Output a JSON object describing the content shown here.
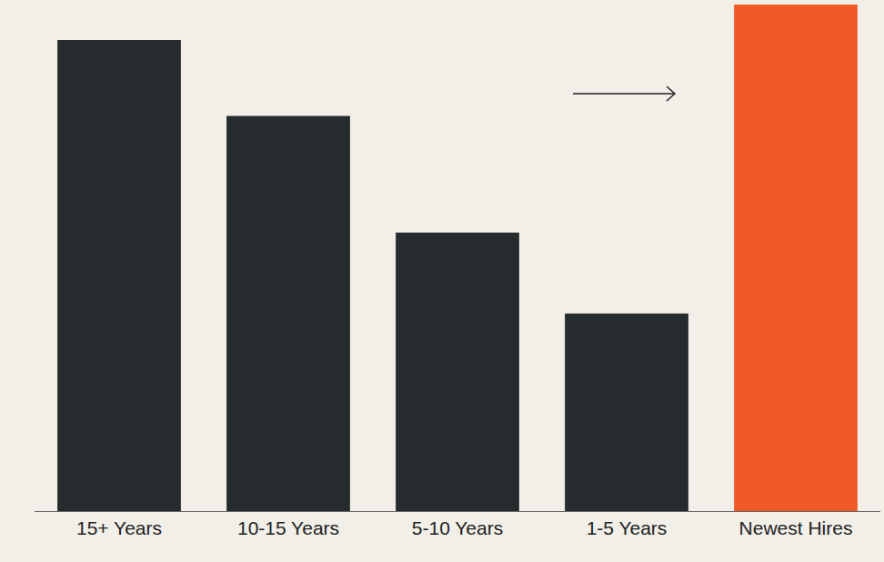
{
  "chart_data": {
    "type": "bar",
    "categories": [
      "15+ Years",
      "10-15 Years",
      "5-10 Years",
      "1-5 Years",
      "Newest Hires"
    ],
    "values": [
      93,
      78,
      55,
      39,
      100
    ],
    "colors": [
      "#262b2e",
      "#262b2e",
      "#262b2e",
      "#262b2e",
      "#f05a28"
    ],
    "ylim": [
      0,
      100
    ],
    "yticks": [
      0,
      100
    ],
    "grid": false,
    "tick_labels": "x"
  }
}
